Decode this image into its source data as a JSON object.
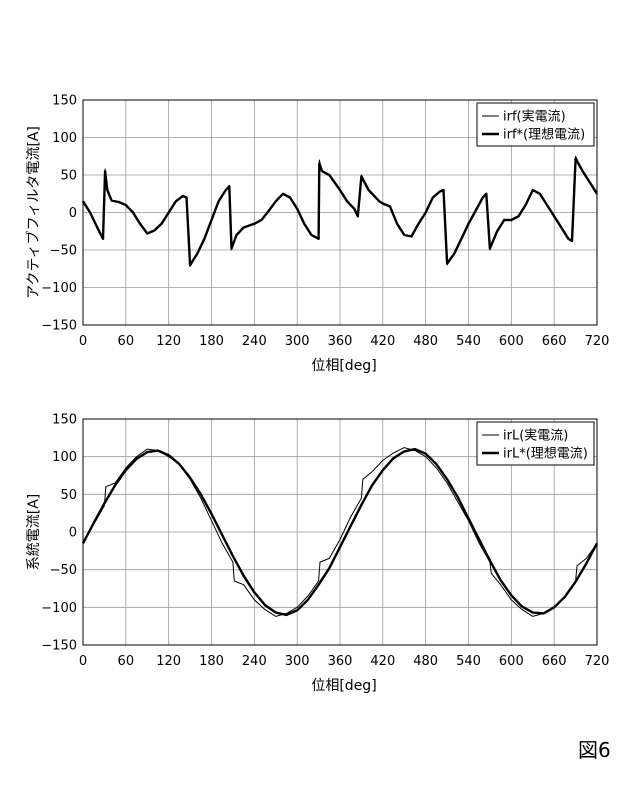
{
  "figure_label": "図6",
  "chart_data": [
    {
      "type": "line",
      "ylabel": "アクティブフィルタ電流[A]",
      "xlabel": "位相[deg]",
      "xlim": [
        0,
        720
      ],
      "ylim": [
        -150,
        150
      ],
      "xticks": [
        "0",
        "60",
        "120",
        "180",
        "240",
        "300",
        "360",
        "420",
        "480",
        "540",
        "600",
        "660",
        "720"
      ],
      "yticks": [
        "150",
        "100",
        "50",
        "0",
        "−50",
        "−100",
        "−150"
      ],
      "grid": true,
      "legend_position": "top-right",
      "series": [
        {
          "name": "irf(実電流)",
          "style": "thin",
          "x": [
            0,
            10,
            20,
            28,
            31,
            34,
            40,
            50,
            60,
            70,
            80,
            90,
            100,
            110,
            120,
            130,
            140,
            145,
            150,
            160,
            170,
            180,
            190,
            200,
            205,
            208,
            215,
            225,
            240,
            250,
            260,
            270,
            280,
            290,
            300,
            310,
            320,
            330,
            331,
            335,
            345,
            360,
            370,
            380,
            385,
            390,
            400,
            415,
            420,
            430,
            440,
            450,
            460,
            470,
            480,
            490,
            500,
            505,
            510,
            520,
            530,
            540,
            560,
            565,
            570,
            580,
            590,
            600,
            610,
            620,
            630,
            640,
            650,
            660,
            670,
            680,
            685,
            690,
            700,
            710,
            720
          ],
          "values": [
            15,
            0,
            -20,
            -35,
            58,
            30,
            16,
            14,
            10,
            0,
            -15,
            -28,
            -24,
            -15,
            0,
            15,
            22,
            20,
            -72,
            -55,
            -35,
            -10,
            15,
            30,
            35,
            -50,
            -30,
            -20,
            -15,
            -10,
            2,
            15,
            25,
            20,
            5,
            -15,
            -30,
            -35,
            70,
            55,
            50,
            30,
            15,
            5,
            -5,
            50,
            30,
            15,
            12,
            8,
            -15,
            -30,
            -32,
            -15,
            0,
            20,
            28,
            30,
            -70,
            -55,
            -35,
            -15,
            20,
            25,
            -50,
            -25,
            -10,
            -10,
            -5,
            10,
            30,
            25,
            10,
            -5,
            -20,
            -35,
            -38,
            75,
            55,
            40,
            25
          ]
        },
        {
          "name": "irf*(理想電流)",
          "style": "thick",
          "x": [
            0,
            10,
            20,
            28,
            31,
            34,
            40,
            50,
            60,
            70,
            80,
            90,
            100,
            110,
            120,
            130,
            140,
            145,
            150,
            160,
            170,
            180,
            190,
            200,
            205,
            208,
            215,
            225,
            240,
            250,
            260,
            270,
            280,
            290,
            300,
            310,
            320,
            330,
            331,
            335,
            345,
            360,
            370,
            380,
            385,
            390,
            400,
            415,
            420,
            430,
            440,
            450,
            460,
            470,
            480,
            490,
            500,
            505,
            510,
            520,
            530,
            540,
            560,
            565,
            570,
            580,
            590,
            600,
            610,
            620,
            630,
            640,
            650,
            660,
            670,
            680,
            685,
            690,
            700,
            710,
            720
          ],
          "values": [
            15,
            0,
            -20,
            -35,
            55,
            30,
            16,
            14,
            10,
            0,
            -15,
            -28,
            -24,
            -15,
            0,
            15,
            22,
            20,
            -70,
            -55,
            -35,
            -10,
            15,
            30,
            35,
            -48,
            -30,
            -20,
            -15,
            -10,
            2,
            15,
            25,
            20,
            5,
            -15,
            -30,
            -35,
            65,
            55,
            50,
            30,
            15,
            5,
            -5,
            48,
            30,
            15,
            12,
            8,
            -15,
            -30,
            -32,
            -15,
            0,
            20,
            28,
            30,
            -68,
            -55,
            -35,
            -15,
            20,
            25,
            -48,
            -25,
            -10,
            -10,
            -5,
            10,
            30,
            25,
            10,
            -5,
            -20,
            -35,
            -38,
            72,
            55,
            40,
            25
          ]
        }
      ]
    },
    {
      "type": "line",
      "ylabel": "系統電流[A]",
      "xlabel": "位相[deg]",
      "xlim": [
        0,
        720
      ],
      "ylim": [
        -150,
        150
      ],
      "xticks": [
        "0",
        "60",
        "120",
        "180",
        "240",
        "300",
        "360",
        "420",
        "480",
        "540",
        "600",
        "660",
        "720"
      ],
      "yticks": [
        "150",
        "100",
        "50",
        "0",
        "−50",
        "−100",
        "−150"
      ],
      "grid": true,
      "legend_position": "top-right",
      "series": [
        {
          "name": "irL(実電流)",
          "style": "thin",
          "x": [
            0,
            15,
            30,
            32,
            45,
            60,
            75,
            90,
            105,
            120,
            135,
            150,
            165,
            180,
            195,
            210,
            212,
            225,
            240,
            255,
            270,
            285,
            300,
            315,
            330,
            332,
            345,
            360,
            375,
            390,
            392,
            405,
            420,
            435,
            450,
            465,
            480,
            495,
            510,
            525,
            540,
            555,
            570,
            572,
            585,
            600,
            615,
            630,
            645,
            660,
            675,
            690,
            692,
            705,
            720
          ],
          "values": [
            -15,
            10,
            35,
            60,
            65,
            85,
            100,
            110,
            108,
            100,
            90,
            70,
            45,
            15,
            -15,
            -40,
            -65,
            -70,
            -90,
            -103,
            -112,
            -108,
            -100,
            -85,
            -65,
            -40,
            -35,
            -10,
            20,
            45,
            70,
            80,
            95,
            105,
            112,
            108,
            100,
            85,
            65,
            40,
            15,
            -15,
            -40,
            -55,
            -70,
            -90,
            -103,
            -112,
            -108,
            -100,
            -85,
            -65,
            -45,
            -35,
            -15
          ]
        },
        {
          "name": "irL*(理想電流)",
          "style": "thick",
          "x": [
            0,
            15,
            30,
            45,
            60,
            75,
            90,
            105,
            120,
            135,
            150,
            165,
            180,
            195,
            210,
            225,
            240,
            255,
            270,
            285,
            300,
            315,
            330,
            345,
            360,
            375,
            390,
            405,
            420,
            435,
            450,
            465,
            480,
            495,
            510,
            525,
            540,
            555,
            570,
            585,
            600,
            615,
            630,
            645,
            660,
            675,
            690,
            705,
            720
          ],
          "values": [
            -15,
            12,
            38,
            62,
            82,
            97,
            106,
            108,
            102,
            90,
            72,
            50,
            24,
            -4,
            -32,
            -58,
            -80,
            -97,
            -107,
            -110,
            -104,
            -90,
            -70,
            -48,
            -20,
            8,
            36,
            62,
            82,
            98,
            107,
            110,
            104,
            90,
            70,
            46,
            18,
            -10,
            -38,
            -64,
            -84,
            -99,
            -107,
            -108,
            -100,
            -86,
            -66,
            -42,
            -15
          ]
        }
      ]
    }
  ]
}
